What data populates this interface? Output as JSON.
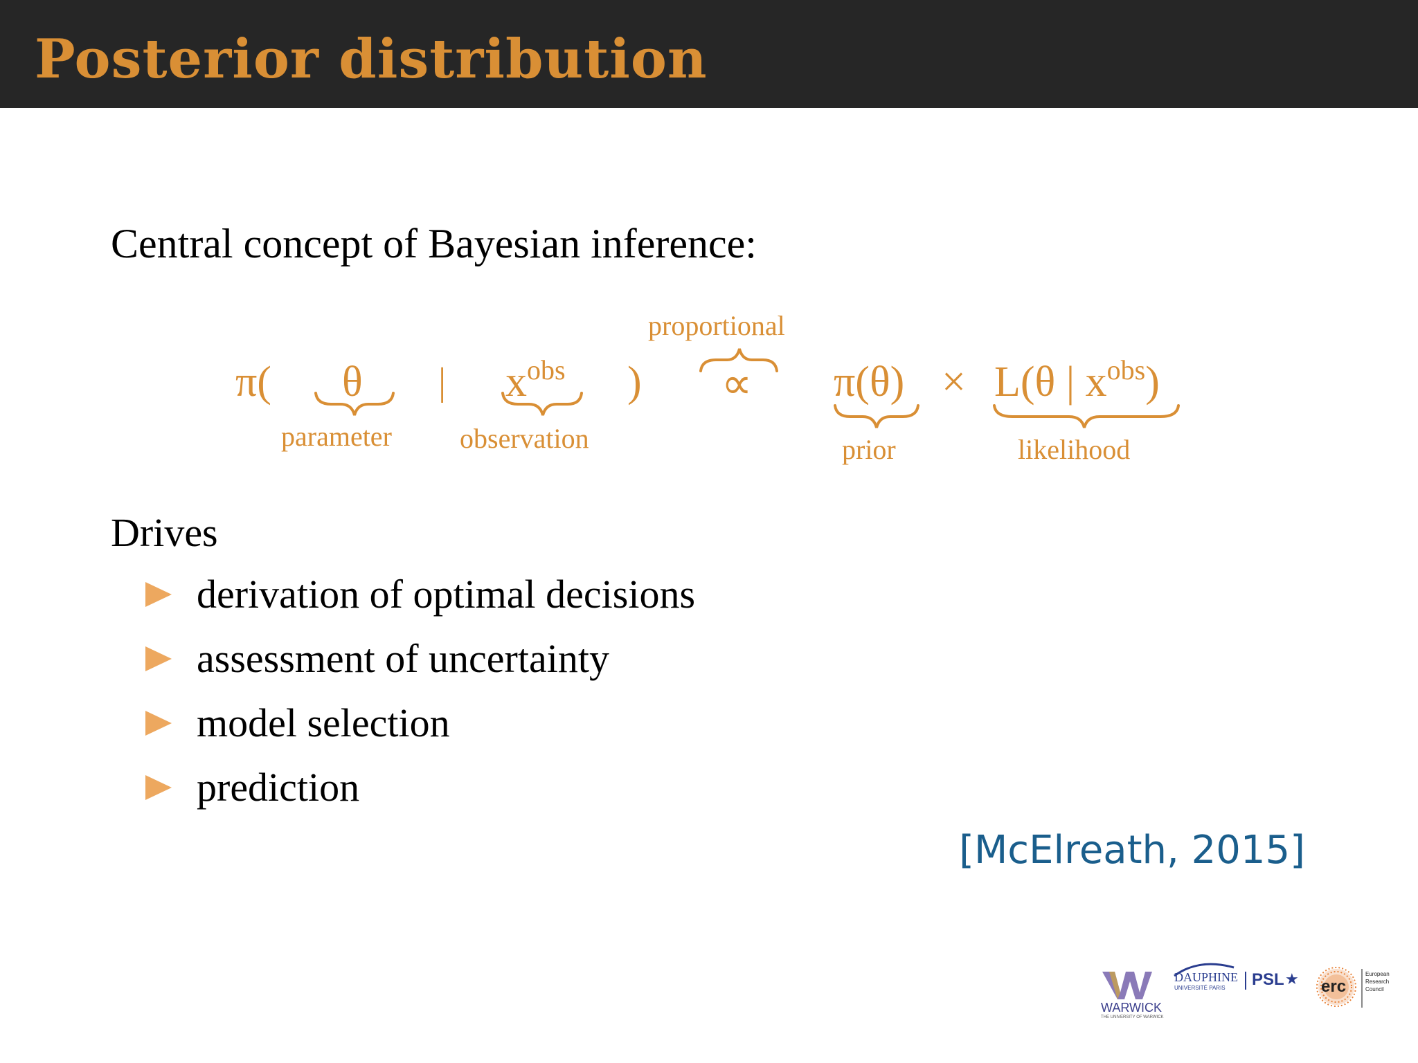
{
  "slide": {
    "title": "Posterior distribution",
    "intro": "Central concept of Bayesian inference:",
    "formula": {
      "pi_open": "π(",
      "theta": "θ",
      "bar": "|",
      "x": "x",
      "obs": "obs",
      "close": ")",
      "propto": "∝",
      "prior_expr": "π(θ)",
      "times": "×",
      "likelihood_expr_prefix": "L(θ | x",
      "likelihood_expr_suffix": ")",
      "label_parameter": "parameter",
      "label_observation": "observation",
      "label_proportional": "proportional",
      "label_prior": "prior",
      "label_likelihood": "likelihood"
    },
    "drives_label": "Drives",
    "bullets": [
      "derivation of optimal decisions",
      "assessment of uncertainty",
      "model selection",
      "prediction"
    ],
    "citation": "[McElreath, 2015]",
    "logos": {
      "warwick": "WARWICK",
      "warwick_sub": "THE UNIVERSITY OF WARWICK",
      "dauphine": "DAUPHINE",
      "dauphine_sub": "UNIVERSITÉ PARIS",
      "psl": "PSL",
      "erc": "erc",
      "erc_line1": "European",
      "erc_line2": "Research",
      "erc_line3": "Council"
    }
  },
  "colors": {
    "header_bg": "#262626",
    "accent_orange": "#d98f35",
    "bullet_orange": "#eda85f",
    "citation_blue": "#1a5e8c",
    "text": "#000000"
  }
}
